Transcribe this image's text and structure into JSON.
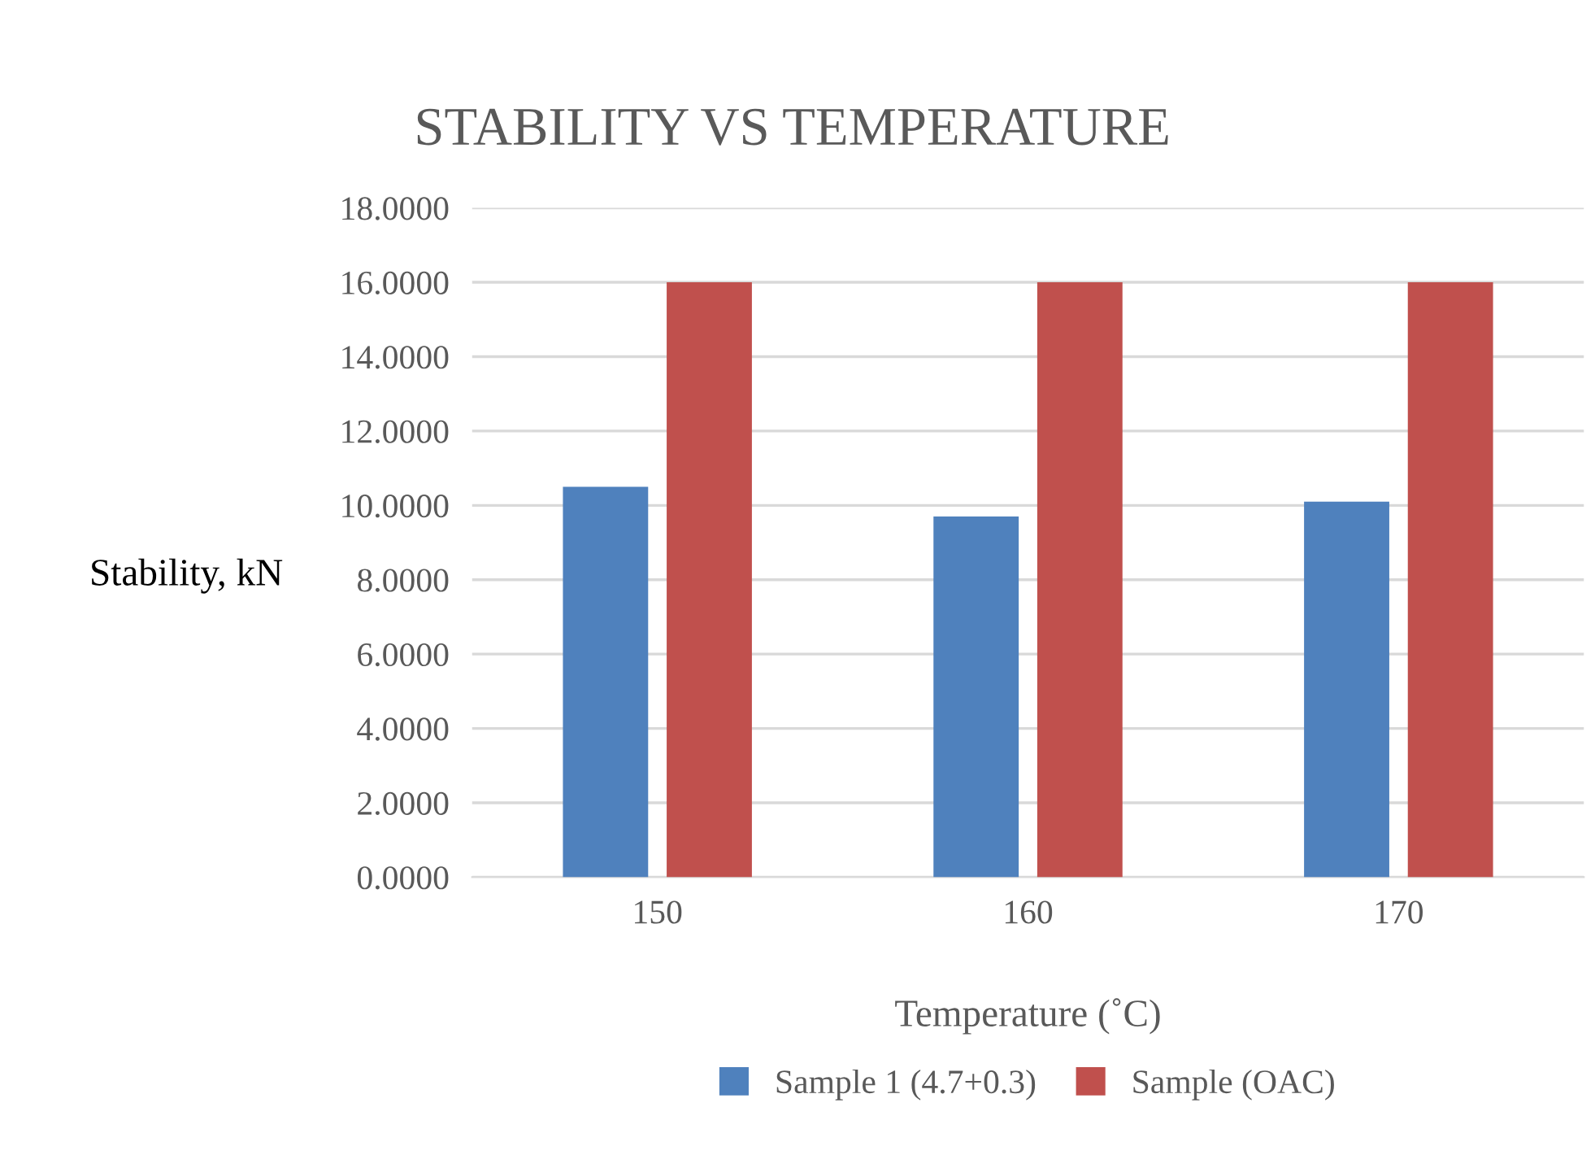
{
  "chart_data": {
    "type": "bar",
    "title": "STABILITY VS TEMPERATURE",
    "xlabel": "Temperature (˚C)",
    "ylabel": "Stability, kN",
    "categories": [
      "150",
      "160",
      "170"
    ],
    "series": [
      {
        "name": "Sample 1 (4.7+0.3)",
        "color": "#4f81bd",
        "values": [
          10.5,
          9.7,
          10.1
        ]
      },
      {
        "name": "Sample (OAC)",
        "color": "#c0504d",
        "values": [
          16.0,
          16.0,
          16.0
        ]
      }
    ],
    "ylim": [
      0,
      18
    ],
    "yticks": [
      {
        "value": 0,
        "label": "0.0000"
      },
      {
        "value": 2,
        "label": "2.0000"
      },
      {
        "value": 4,
        "label": "4.0000"
      },
      {
        "value": 6,
        "label": "6.0000"
      },
      {
        "value": 8,
        "label": "8.0000"
      },
      {
        "value": 10,
        "label": "10.0000"
      },
      {
        "value": 12,
        "label": "12.0000"
      },
      {
        "value": 14,
        "label": "14.0000"
      },
      {
        "value": 16,
        "label": "16.0000"
      },
      {
        "value": 18,
        "label": "18.0000"
      }
    ],
    "grid": "y",
    "legend": "bottom"
  }
}
